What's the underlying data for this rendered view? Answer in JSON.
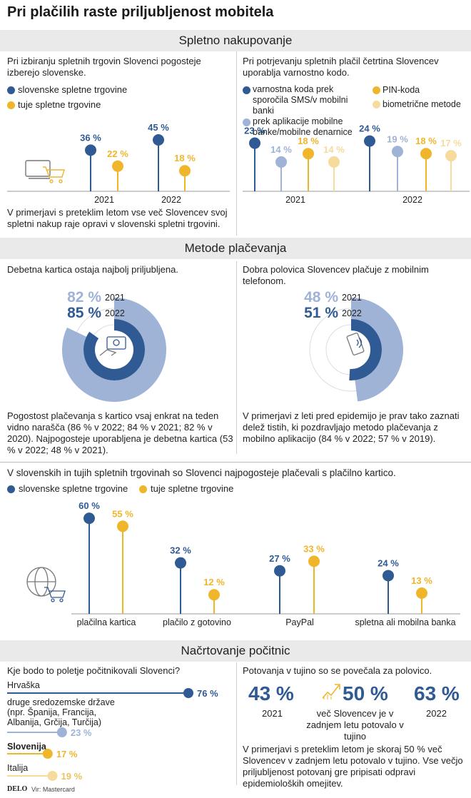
{
  "title": "Pri plačilih raste priljubljenost mobitela",
  "colors": {
    "blue": "#2f5a94",
    "yellow": "#f0b62b",
    "lightblue": "#9fb3d6",
    "lightyellow": "#f6dc9c",
    "gray": "#eaeaea"
  },
  "sections": {
    "online": "Spletno nakupovanje",
    "payments": "Metode plačevanja",
    "vacation": "Načrtovanje počitnic"
  },
  "online_left": {
    "heading": "Pri izbiranju spletnih trgovin Slovenci pogosteje izberejo slovenske.",
    "legend": [
      "slovenske spletne trgovine",
      "tuje spletne trgovine"
    ],
    "footnote": "V primerjavi s preteklim letom vse več Slovencev svoj spletni nakup raje opravi v slovenski spletni trgovini."
  },
  "online_right": {
    "heading": "Pri potrjevanju spletnih plačil četrtina Slovencev uporablja varnostno kodo.",
    "legend": [
      "varnostna koda prek sporočila SMS/v mobilni banki",
      "prek aplikacije mobilne banke/mobilne denarnice",
      "PIN-koda",
      "biometrične metode"
    ]
  },
  "payments_left": {
    "heading": "Debetna kartica ostaja najbolj priljubljena.",
    "footnote": "Pogostost plačevanja s kartico vsaj enkrat na teden vidno narašča (86 % v 2022; 84 % v 2021; 82 % v 2020). Najpogosteje uporabljena je debetna kartica (53 % v 2022; 48 % v 2021)."
  },
  "payments_right": {
    "heading": "Dobra polovica Slovencev plačuje z mobilnim telefonom.",
    "footnote": "V primerjavi z leti pred epidemijo je prav tako zaznati delež tistih, ki pozdravljajo metodo plačevanja z mobilno aplikacijo (84 % v 2022; 57 % v 2019)."
  },
  "methods": {
    "heading": "V slovenskih in tujih spletnih trgovinah so Slovenci najpogosteje plačevali s plačilno kartico.",
    "legend": [
      "slovenske spletne trgovine",
      "tuje spletne trgovine"
    ]
  },
  "vacation_left": {
    "heading": "Kje bodo to poletje počitnikovali Slovenci?"
  },
  "vacation_right": {
    "heading": "Potovanja v tujino so se povečala za polovico.",
    "stat1_value": "43 %",
    "stat1_label": "2021",
    "stat2_value": "50 %",
    "stat2_label": "več Slovencev je v zadnjem letu potovalo v tujino",
    "stat3_value": "63 %",
    "stat3_label": "2022",
    "footnote": "V primerjavi s preteklim letom je skoraj 50 % več Slovencev v zadnjem letu potovalo v tujino. Vse večjo priljubljenost potovanj gre pripisati odpravi epidemioloških omejitev."
  },
  "footer": {
    "brand": "DELO",
    "source": "Vir: Mastercard"
  },
  "chart_data": [
    {
      "type": "lollipop",
      "title": "Pri izbiranju spletnih trgovin Slovenci pogosteje izberejo slovenske.",
      "categories": [
        "2021",
        "2022"
      ],
      "series": [
        {
          "name": "slovenske spletne trgovine",
          "values": [
            36,
            45
          ],
          "labels": [
            "36 %",
            "45 %"
          ]
        },
        {
          "name": "tuje spletne trgovine",
          "values": [
            22,
            18
          ],
          "labels": [
            "22 %",
            "18 %"
          ]
        }
      ],
      "ylim": [
        0,
        50
      ]
    },
    {
      "type": "lollipop",
      "title": "Pri potrjevanju spletnih plačil četrtina Slovencev uporablja varnostno kodo.",
      "categories": [
        "2021",
        "2022"
      ],
      "series": [
        {
          "name": "varnostna koda prek sporočila SMS/v mobilni banki",
          "values": [
            23,
            24
          ],
          "labels": [
            "23 %",
            "24 %"
          ]
        },
        {
          "name": "prek aplikacije mobilne banke/mobilne denarnice",
          "values": [
            14,
            19
          ],
          "labels": [
            "14 %",
            "19 %"
          ]
        },
        {
          "name": "PIN-koda",
          "values": [
            18,
            18
          ],
          "labels": [
            "18 %",
            "18 %"
          ]
        },
        {
          "name": "biometrične metode",
          "values": [
            14,
            17
          ],
          "labels": [
            "14 %",
            "17 %"
          ]
        }
      ],
      "ylim": [
        0,
        30
      ]
    },
    {
      "type": "donut",
      "title": "Debetna kartica ostaja najbolj priljubljena.",
      "rings": [
        {
          "year": "2021",
          "value": 82,
          "label": "82 %"
        },
        {
          "year": "2022",
          "value": 85,
          "label": "85 %"
        }
      ]
    },
    {
      "type": "donut",
      "title": "Dobra polovica Slovencev plačuje z mobilnim telefonom.",
      "rings": [
        {
          "year": "2021",
          "value": 48,
          "label": "48 %"
        },
        {
          "year": "2022",
          "value": 51,
          "label": "51 %"
        }
      ]
    },
    {
      "type": "lollipop",
      "title": "V slovenskih in tujih spletnih trgovinah so Slovenci najpogosteje plačevali s plačilno kartico.",
      "categories": [
        "plačilna kartica",
        "plačilo z gotovino",
        "PayPal",
        "spletna ali mobilna banka"
      ],
      "series": [
        {
          "name": "slovenske spletne trgovine",
          "values": [
            60,
            32,
            27,
            24
          ],
          "labels": [
            "60 %",
            "32 %",
            "27 %",
            "24 %"
          ]
        },
        {
          "name": "tuje spletne trgovine",
          "values": [
            55,
            12,
            33,
            13
          ],
          "labels": [
            "55 %",
            "12 %",
            "33 %",
            "13 %"
          ]
        }
      ],
      "ylim": [
        0,
        65
      ]
    },
    {
      "type": "horizontal-lollipop",
      "title": "Kje bodo to poletje počitnikovali Slovenci?",
      "categories": [
        "Hrvaška",
        "druge sredozemske države (npr. Španija, Francija, Albanija, Grčija, Turčija)",
        "Slovenija",
        "Italija"
      ],
      "values": [
        76,
        23,
        17,
        19
      ],
      "labels": [
        "76 %",
        "23 %",
        "17 %",
        "19 %"
      ],
      "xlim": [
        0,
        80
      ]
    }
  ]
}
